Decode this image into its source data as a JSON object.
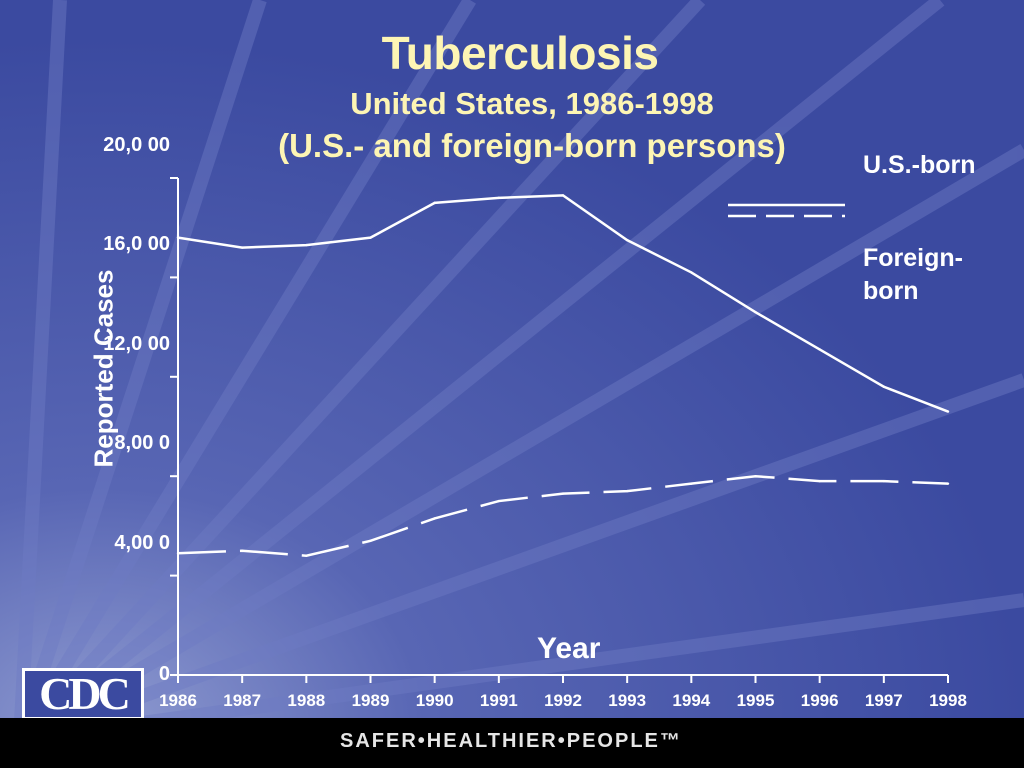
{
  "slide": {
    "title": "Tuberculosis",
    "subtitle_line1": "United States, 1986-1998",
    "subtitle_line2": "(U.S.- and foreign-born persons)",
    "logo_text": "CDC",
    "footer_text": "SAFER•HEALTHIER•PEOPLE™",
    "colors": {
      "background": "#3b4aa0",
      "title": "#fdf5b4",
      "text": "#ffffff",
      "footer": "#000000"
    }
  },
  "chart_data": {
    "type": "line",
    "title": "Tuberculosis",
    "subtitle": "United States, 1986-1998 (U.S.- and foreign-born persons)",
    "xlabel": "Year",
    "ylabel": "Reported Cases",
    "ylim": [
      0,
      20000
    ],
    "yticks": [
      0,
      4000,
      8000,
      12000,
      16000,
      20000
    ],
    "ytick_labels": [
      "0",
      "4,00 0",
      "8,00 0",
      "12,0 00",
      "16,0 00",
      "20,0 00"
    ],
    "x": [
      "1986",
      "1987",
      "1988",
      "1989",
      "1990",
      "1991",
      "1992",
      "1993",
      "1994",
      "1995",
      "1996",
      "1997",
      "1998"
    ],
    "grid": false,
    "legend_position": "top-right",
    "series": [
      {
        "name": "U.S.-born",
        "style": "solid",
        "values": [
          17600,
          17200,
          17300,
          17600,
          19000,
          19200,
          19300,
          17500,
          16200,
          14600,
          13100,
          11600,
          10600
        ]
      },
      {
        "name": "Foreign-born",
        "style": "dashed",
        "values": [
          4900,
          5000,
          4800,
          5400,
          6300,
          7000,
          7300,
          7400,
          7700,
          8000,
          7800,
          7800,
          7700
        ]
      }
    ]
  }
}
